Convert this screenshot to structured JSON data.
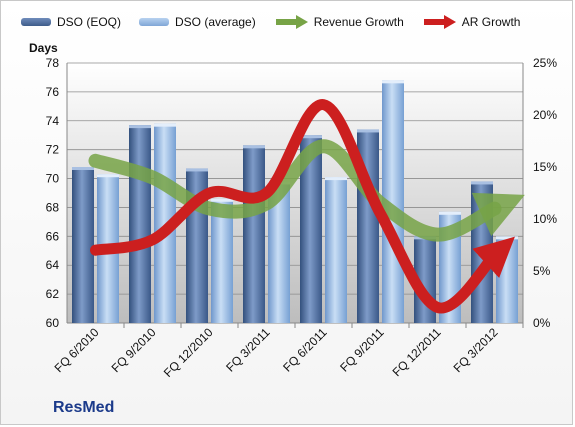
{
  "chart_data": {
    "type": "bar",
    "ylabel": "Days",
    "ylim": [
      60,
      78
    ],
    "yticks": [
      60,
      62,
      64,
      66,
      68,
      70,
      72,
      74,
      76,
      78
    ],
    "y2lim": [
      0,
      25
    ],
    "y2ticks": [
      "0%",
      "5%",
      "10%",
      "15%",
      "20%",
      "25%"
    ],
    "categories": [
      "FQ 6/2010",
      "FQ 9/2010",
      "FQ 12/2010",
      "FQ 3/2011",
      "FQ 6/2011",
      "FQ 9/2011",
      "FQ 12/2011",
      "FQ 3/2012"
    ],
    "series": [
      {
        "name": "DSO (EOQ)",
        "kind": "bar",
        "axis": "left",
        "color": "#4f6d9c",
        "values": [
          70.8,
          73.7,
          70.7,
          72.3,
          73.0,
          73.4,
          66.0,
          69.8
        ]
      },
      {
        "name": "DSO (average)",
        "kind": "bar",
        "axis": "left",
        "color": "#8db3e2",
        "values": [
          70.3,
          73.8,
          68.6,
          69.8,
          70.1,
          76.8,
          67.7,
          66.0
        ]
      },
      {
        "name": "Revenue Growth",
        "kind": "line-arrow",
        "axis": "right",
        "color": "#77a346",
        "values": [
          15.6,
          14.0,
          11.0,
          11.5,
          17.0,
          11.5,
          8.5,
          11.0
        ]
      },
      {
        "name": "AR Growth",
        "kind": "line-arrow",
        "axis": "right",
        "color": "#cc1f1f",
        "values": [
          7.0,
          8.0,
          12.5,
          12.5,
          21.0,
          10.5,
          1.5,
          6.5
        ]
      }
    ],
    "legend": "top",
    "grid": true
  },
  "brand": "ResMed"
}
